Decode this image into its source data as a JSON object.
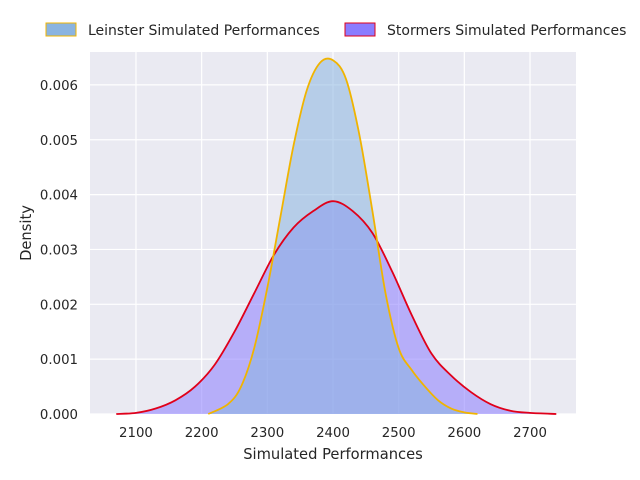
{
  "chart_data": {
    "type": "area",
    "xlabel": "Simulated Performances",
    "ylabel": "Density",
    "xlim": [
      2030,
      2770
    ],
    "ylim": [
      0,
      0.0066
    ],
    "x_ticks": [
      2100,
      2200,
      2300,
      2400,
      2500,
      2600,
      2700
    ],
    "x_tick_labels": [
      "2100",
      "2200",
      "2300",
      "2400",
      "2500",
      "2600",
      "2700"
    ],
    "y_ticks": [
      0,
      0.001,
      0.002,
      0.003,
      0.004,
      0.005,
      0.006
    ],
    "y_tick_labels": [
      "0.000",
      "0.001",
      "0.002",
      "0.003",
      "0.004",
      "0.005",
      "0.006"
    ],
    "grid": true,
    "legend_position": "top",
    "series": [
      {
        "name": "Leinster Simulated Performances",
        "fill": "#8ab4e0",
        "line": "#f0b400",
        "x": [
          2210,
          2240,
          2260,
          2280,
          2300,
          2320,
          2340,
          2360,
          2380,
          2400,
          2420,
          2440,
          2460,
          2480,
          2500,
          2520,
          2540,
          2560,
          2580,
          2600,
          2620
        ],
        "y": [
          0.0,
          0.00018,
          0.0005,
          0.0012,
          0.0023,
          0.0036,
          0.0049,
          0.0059,
          0.0064,
          0.00645,
          0.0061,
          0.0051,
          0.0037,
          0.0022,
          0.0012,
          0.0008,
          0.0005,
          0.00025,
          0.0001,
          3e-05,
          0.0
        ]
      },
      {
        "name": "Stormers Simulated Performances",
        "fill": "#8a7cff",
        "line": "#e0001a",
        "x": [
          2070,
          2100,
          2130,
          2160,
          2190,
          2220,
          2250,
          2280,
          2310,
          2340,
          2370,
          2400,
          2430,
          2460,
          2490,
          2520,
          2550,
          2580,
          2610,
          2640,
          2670,
          2700,
          2740
        ],
        "y": [
          0.0,
          2e-05,
          0.0001,
          0.00025,
          0.0005,
          0.0009,
          0.0015,
          0.0022,
          0.0029,
          0.0034,
          0.0037,
          0.00388,
          0.0037,
          0.0033,
          0.0026,
          0.0018,
          0.0011,
          0.0007,
          0.0004,
          0.00018,
          6e-05,
          2e-05,
          0.0
        ]
      }
    ]
  }
}
